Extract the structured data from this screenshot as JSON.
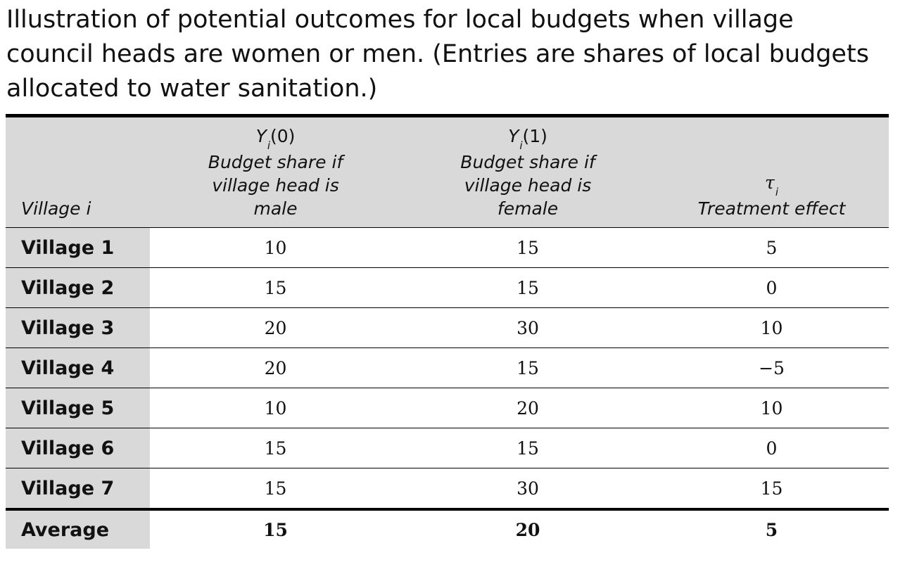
{
  "caption": "Illustration of potential outcomes for local budgets when village council heads are women or men. (Entries are shares of local budgets allocated to water sanitation.)",
  "table": {
    "headers": {
      "village": "Village i",
      "y0": {
        "symbol": "Y",
        "subscript": "i",
        "arg": "(0)",
        "line1": "Budget share if",
        "line2": "village head is",
        "line3": "male"
      },
      "y1": {
        "symbol": "Y",
        "subscript": "i",
        "arg": "(1)",
        "line1": "Budget share if",
        "line2": "village head is",
        "line3": "female"
      },
      "tau": {
        "symbol": "τ",
        "subscript": "i",
        "line1": "Treatment effect"
      }
    },
    "rows": [
      {
        "village": "Village 1",
        "y0": "10",
        "y1": "15",
        "tau": "5"
      },
      {
        "village": "Village 2",
        "y0": "15",
        "y1": "15",
        "tau": "0"
      },
      {
        "village": "Village 3",
        "y0": "20",
        "y1": "30",
        "tau": "10"
      },
      {
        "village": "Village 4",
        "y0": "20",
        "y1": "15",
        "tau": "−5"
      },
      {
        "village": "Village 5",
        "y0": "10",
        "y1": "20",
        "tau": "10"
      },
      {
        "village": "Village 6",
        "y0": "15",
        "y1": "15",
        "tau": "0"
      },
      {
        "village": "Village 7",
        "y0": "15",
        "y1": "30",
        "tau": "15"
      }
    ],
    "average": {
      "label": "Average",
      "y0": "15",
      "y1": "20",
      "tau": "5"
    }
  },
  "colors": {
    "header_bg": "#d9d9d9",
    "rule": "#000000",
    "text": "#111111"
  }
}
